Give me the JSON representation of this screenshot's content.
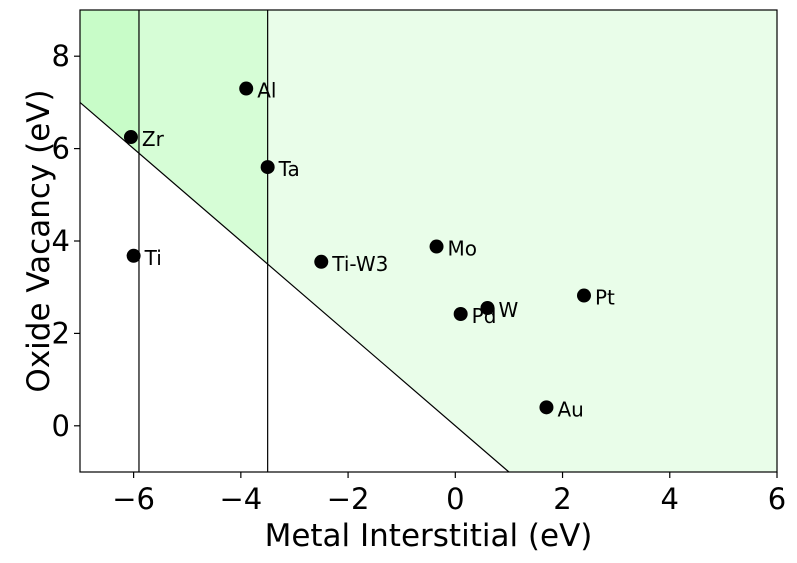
{
  "chart_data": {
    "type": "scatter",
    "title": "",
    "xlabel": "Metal Interstitial (eV)",
    "ylabel": "Oxide Vacancy (eV)",
    "xlim": [
      -7,
      6
    ],
    "ylim": [
      -1,
      9
    ],
    "xticks": [
      -6,
      -4,
      -2,
      0,
      2,
      4,
      6
    ],
    "yticks": [
      0,
      2,
      4,
      6,
      8
    ],
    "grid": false,
    "legend": "none",
    "point_color": "#000000",
    "points": [
      {
        "label": "Al",
        "x": -3.9,
        "y": 7.3
      },
      {
        "label": "Zr",
        "x": -6.05,
        "y": 6.25
      },
      {
        "label": "Ta",
        "x": -3.5,
        "y": 5.6
      },
      {
        "label": "Ti",
        "x": -6.0,
        "y": 3.68
      },
      {
        "label": "Ti-W3",
        "x": -2.5,
        "y": 3.55
      },
      {
        "label": "Mo",
        "x": -0.35,
        "y": 3.88
      },
      {
        "label": "Pt",
        "x": 2.4,
        "y": 2.82
      },
      {
        "label": "W",
        "x": 0.6,
        "y": 2.55
      },
      {
        "label": "Pd",
        "x": 0.1,
        "y": 2.42
      },
      {
        "label": "Au",
        "x": 1.7,
        "y": 0.4
      }
    ],
    "vertical_lines": [
      -5.9,
      -3.5
    ],
    "diagonal_line": [
      [
        -7,
        7
      ],
      [
        1,
        -1
      ]
    ],
    "regions": {
      "lightest": "#e9fde9",
      "middle": "#d6fdd6",
      "darkest": "#c8fcc8",
      "below_line": "#ffffff"
    }
  }
}
